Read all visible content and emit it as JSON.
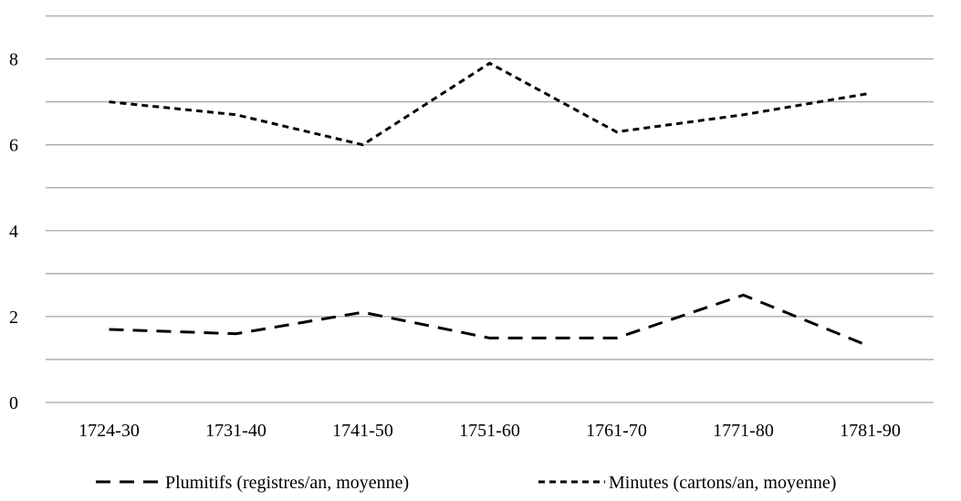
{
  "chart_data": {
    "type": "line",
    "categories": [
      "1724-30",
      "1731-40",
      "1741-50",
      "1751-60",
      "1761-70",
      "1771-80",
      "1781-90"
    ],
    "series": [
      {
        "name": "Plumitifs (registres/an, moyenne)",
        "values": [
          1.7,
          1.6,
          2.1,
          1.5,
          1.5,
          2.5,
          1.3
        ],
        "dash": "long"
      },
      {
        "name": "Minutes (cartons/an, moyenne)",
        "values": [
          7.0,
          6.7,
          6.0,
          7.9,
          6.3,
          6.7,
          7.2
        ],
        "dash": "short"
      }
    ],
    "yticks": [
      0,
      2,
      4,
      6,
      8
    ],
    "ylim": [
      0,
      9
    ],
    "grid": true,
    "gridline_step": 1,
    "legend_position": "bottom",
    "colors": {
      "line": "#000000",
      "grid": "#a6a6a6",
      "axis": "#a6a6a6"
    }
  }
}
